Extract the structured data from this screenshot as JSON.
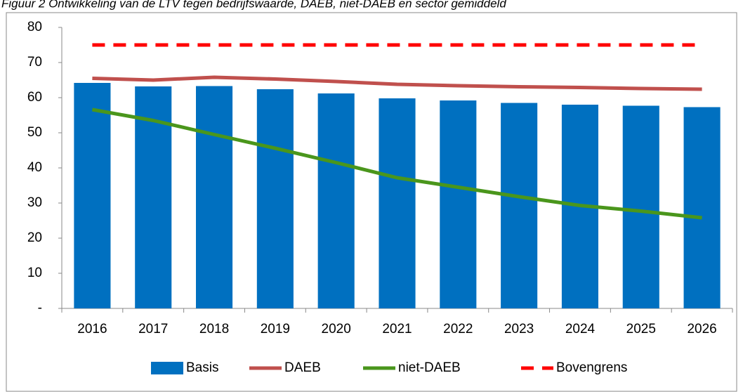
{
  "chart_data": {
    "type": "bar",
    "title": "Figuur 2 Ontwikkeling van de LTV tegen bedrijfswaarde, DAEB, niet-DAEB en sector gemiddeld",
    "categories": [
      "2016",
      "2017",
      "2018",
      "2019",
      "2020",
      "2021",
      "2022",
      "2023",
      "2024",
      "2025",
      "2026"
    ],
    "series": [
      {
        "name": "Basis",
        "type": "bar",
        "color": "#0070c0",
        "values": [
          64.2,
          63.2,
          63.3,
          62.4,
          61.2,
          59.8,
          59.2,
          58.5,
          58.0,
          57.7,
          57.3
        ]
      },
      {
        "name": "DAEB",
        "type": "line",
        "color": "#c0504d",
        "linestyle": "solid",
        "values": [
          65.5,
          65.0,
          65.8,
          65.3,
          64.6,
          63.8,
          63.4,
          63.1,
          62.9,
          62.6,
          62.4
        ]
      },
      {
        "name": "niet-DAEB",
        "type": "line",
        "color": "#4a961c",
        "linestyle": "solid",
        "values": [
          56.6,
          53.5,
          49.5,
          45.6,
          41.5,
          37.2,
          34.5,
          31.8,
          29.3,
          27.7,
          25.8
        ]
      },
      {
        "name": "Bovengrens",
        "type": "line",
        "color": "#ff0000",
        "linestyle": "dashed",
        "values": [
          75,
          75,
          75,
          75,
          75,
          75,
          75,
          75,
          75,
          75,
          75
        ]
      }
    ],
    "ylim": [
      0,
      80
    ],
    "yticks": [
      {
        "value": 0,
        "label": "-"
      },
      10,
      20,
      30,
      40,
      50,
      60,
      70,
      80
    ],
    "grid": false,
    "legend": "bottom"
  }
}
